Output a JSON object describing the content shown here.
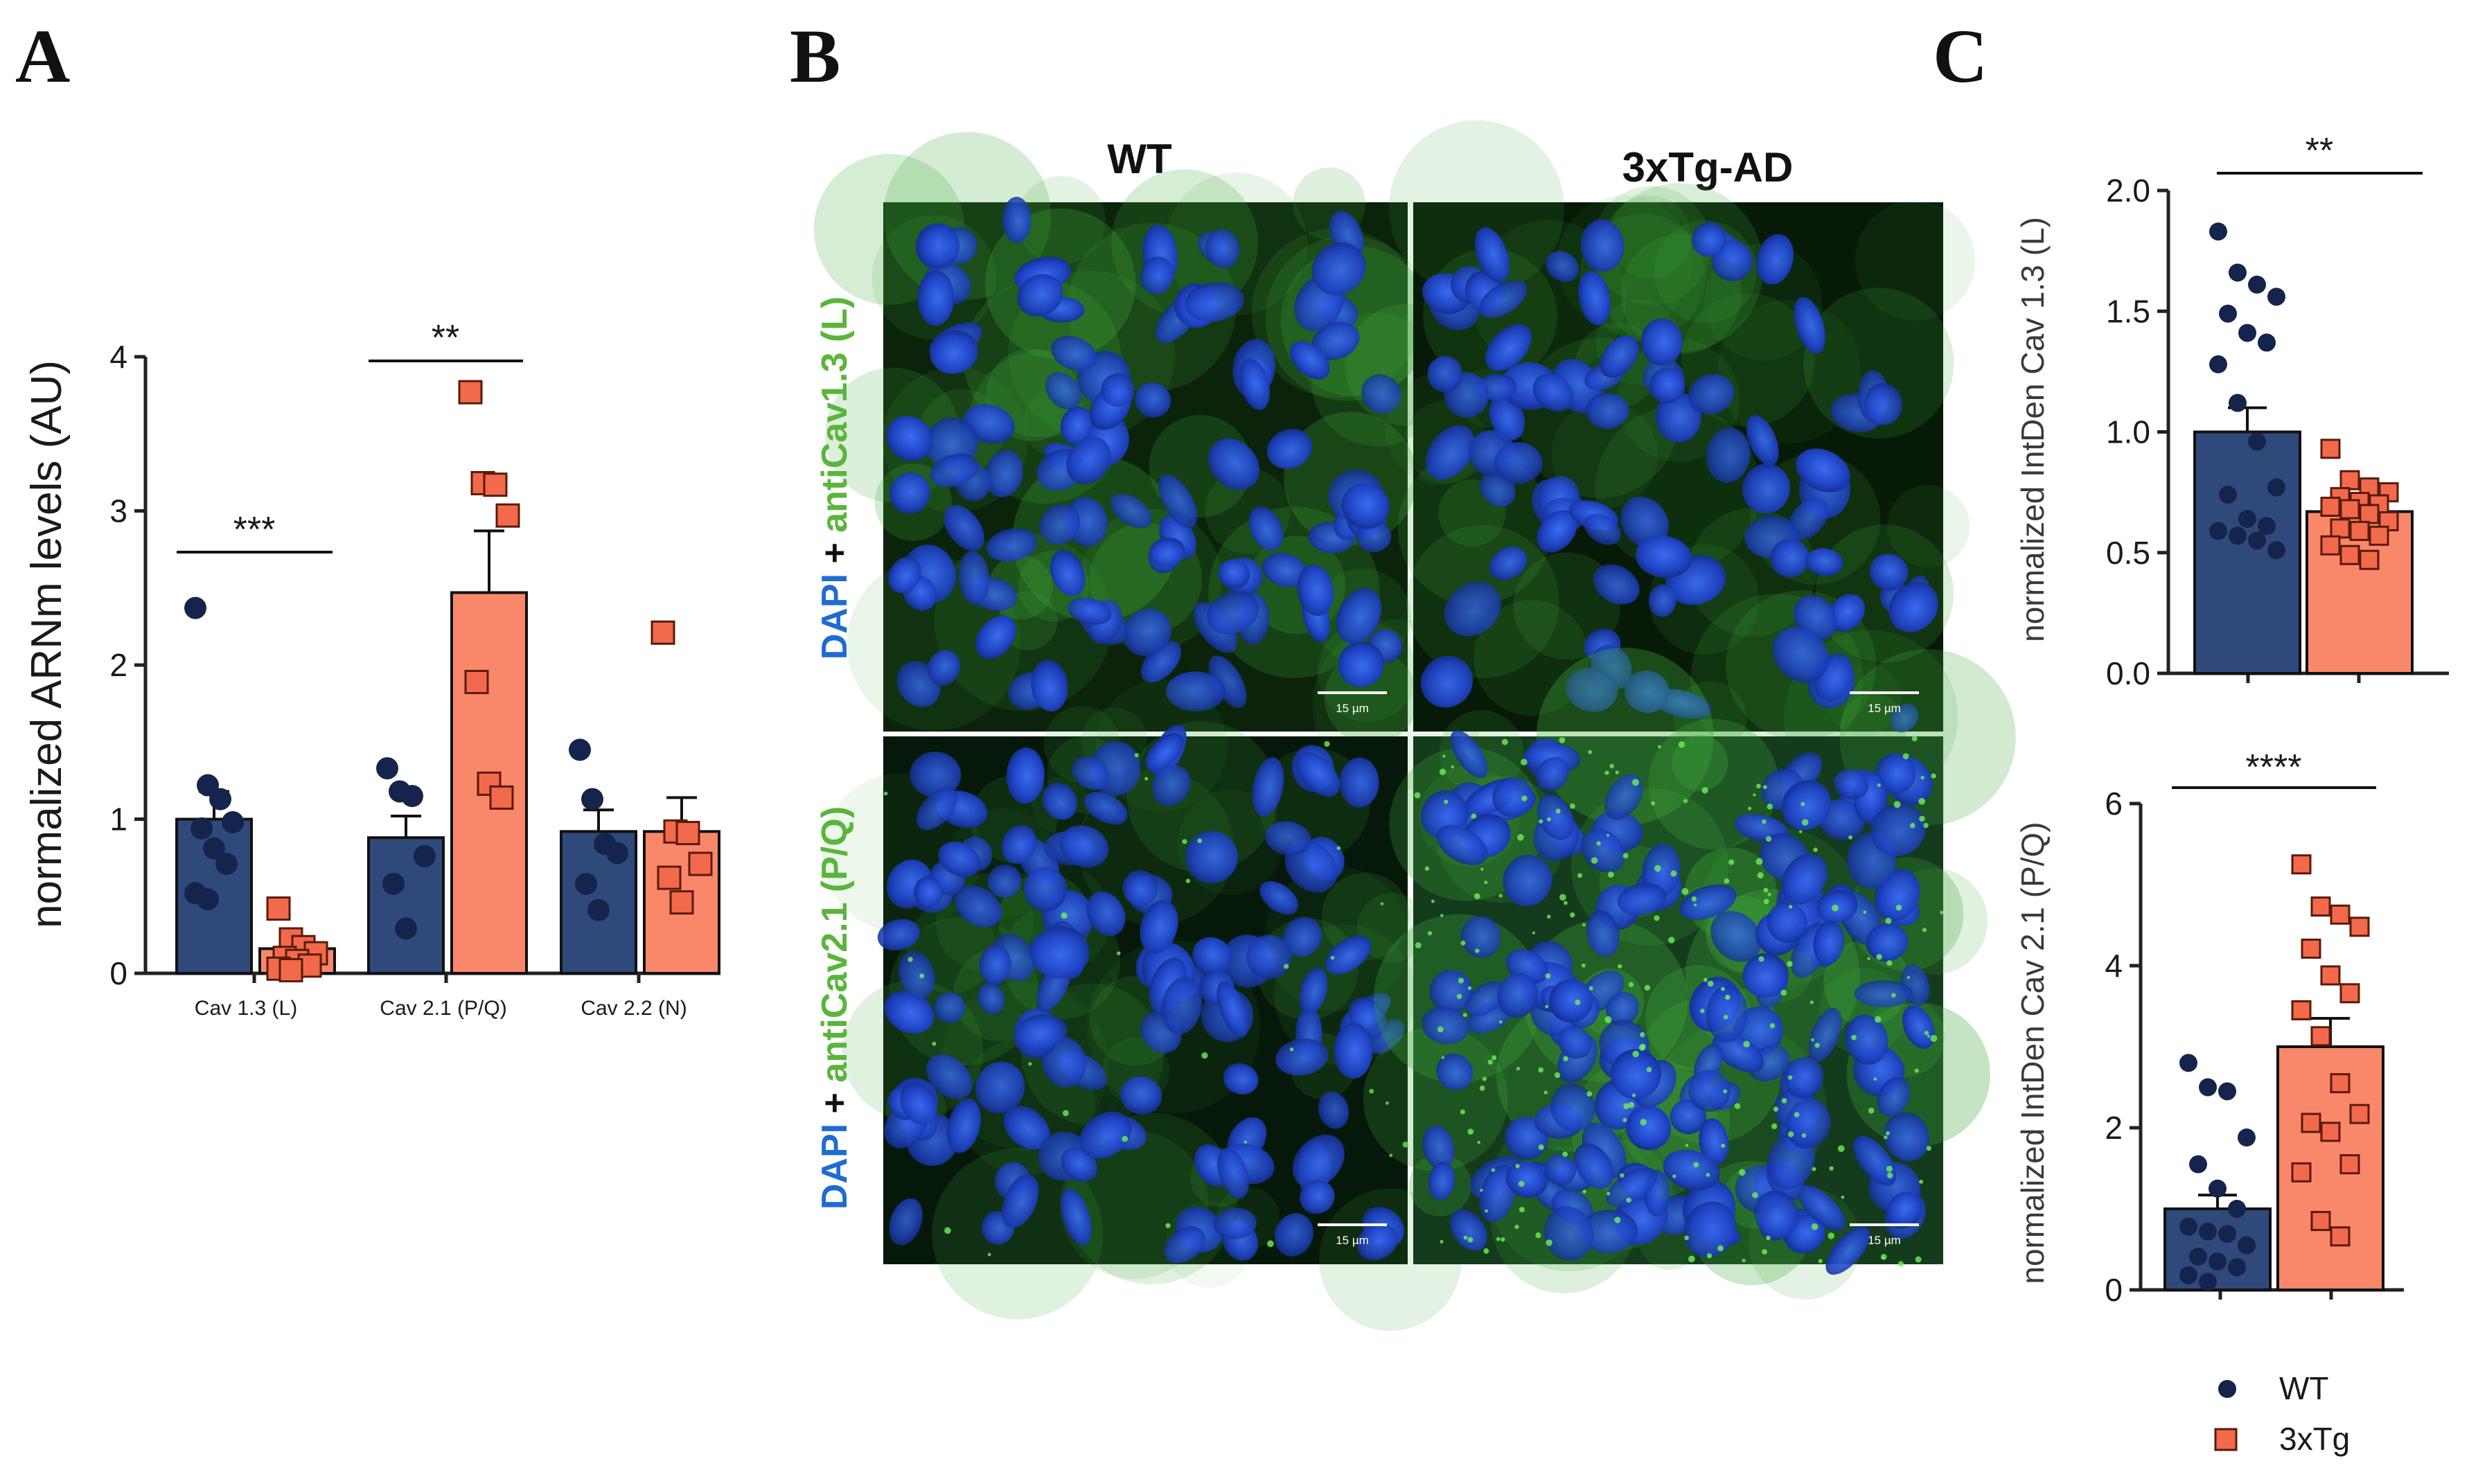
{
  "panels": {
    "a": "A",
    "b": "B",
    "c": "C"
  },
  "colors": {
    "wt": "#2f4a7a",
    "wt_dot": "#14244d",
    "tg": "#f9876a",
    "tg_marker": "#f26a4b",
    "green": "#5ab53c",
    "blue": "#1f6bd1"
  },
  "micrographs": {
    "col_titles": [
      "WT",
      "3xTg-AD"
    ],
    "rows": [
      {
        "dapi": "DAPI",
        "plus": " + ",
        "marker": "antiCav1.3 (L)"
      },
      {
        "dapi": "DAPI",
        "plus": " + ",
        "marker": "antiCav2.1  (P/Q)"
      }
    ],
    "scale_bar": "15 µm"
  },
  "legend": {
    "wt": "WT",
    "tg": "3xTg"
  },
  "chart_data": [
    {
      "id": "A",
      "type": "bar",
      "ylabel": "normalized ARNm levels (AU)",
      "ylim": [
        0,
        4
      ],
      "yticks": [
        0,
        1,
        2,
        3,
        4
      ],
      "categories": [
        "Cav 1.3 (L)",
        "Cav 2.1 (P/Q)",
        "Cav 2.2 (N)"
      ],
      "series": [
        {
          "name": "WT",
          "values": [
            1.0,
            0.88,
            0.92
          ],
          "sem": [
            0.18,
            0.14,
            0.14
          ],
          "points": [
            [
              2.37,
              1.22,
              1.13,
              0.98,
              0.94,
              0.81,
              0.71,
              0.52,
              0.48
            ],
            [
              1.33,
              1.18,
              1.15,
              0.76,
              0.58,
              0.29
            ],
            [
              1.45,
              1.13,
              0.84,
              0.78,
              0.58,
              0.41
            ]
          ]
        },
        {
          "name": "3xTg",
          "values": [
            0.16,
            2.47,
            0.92
          ],
          "sem": [
            0.06,
            0.4,
            0.22
          ],
          "points": [
            [
              0.42,
              0.22,
              0.17,
              0.13,
              0.1,
              0.08,
              0.05,
              0.03,
              0.02
            ],
            [
              3.77,
              3.18,
              3.17,
              2.97,
              1.89,
              1.23,
              1.14
            ],
            [
              2.21,
              0.92,
              0.91,
              0.71,
              0.62,
              0.46
            ]
          ]
        }
      ],
      "significance": [
        "***",
        "**",
        ""
      ]
    },
    {
      "id": "C-top",
      "type": "bar",
      "ylabel": "normalized IntDen Cav 1.3 (L)",
      "ylim": [
        0,
        2.0
      ],
      "yticks": [
        0.0,
        0.5,
        1.0,
        1.5,
        2.0
      ],
      "yticklabels": [
        "0.0",
        "0.5",
        "1.0",
        "1.5",
        "2.0"
      ],
      "categories": [
        "WT",
        "3xTg"
      ],
      "values": [
        1.0,
        0.67
      ],
      "sem": [
        0.1,
        0.03
      ],
      "points": [
        [
          1.83,
          1.66,
          1.61,
          1.56,
          1.49,
          1.41,
          1.37,
          1.28,
          1.12,
          0.96,
          0.77,
          0.74,
          0.64,
          0.61,
          0.59,
          0.57,
          0.55,
          0.51
        ],
        [
          0.93,
          0.8,
          0.77,
          0.75,
          0.73,
          0.71,
          0.7,
          0.69,
          0.68,
          0.66,
          0.63,
          0.6,
          0.59,
          0.57,
          0.53,
          0.49,
          0.47
        ]
      ],
      "significance": "**"
    },
    {
      "id": "C-bottom",
      "type": "bar",
      "ylabel": "normalized IntDen Cav 2.1 (P/Q)",
      "ylim": [
        0,
        6
      ],
      "yticks": [
        0,
        2,
        4,
        6
      ],
      "categories": [
        "WT",
        "3xTg"
      ],
      "values": [
        1.0,
        3.0
      ],
      "sem": [
        0.17,
        0.35
      ],
      "points": [
        [
          2.8,
          2.5,
          2.45,
          1.88,
          1.55,
          1.25,
          1.0,
          0.78,
          0.72,
          0.69,
          0.55,
          0.41,
          0.35,
          0.28,
          0.18,
          0.1
        ],
        [
          5.25,
          4.73,
          4.63,
          4.48,
          4.21,
          3.88,
          3.66,
          3.45,
          3.13,
          2.55,
          2.17,
          2.06,
          1.95,
          1.55,
          1.45,
          0.85,
          0.66
        ]
      ],
      "significance": "****"
    }
  ]
}
